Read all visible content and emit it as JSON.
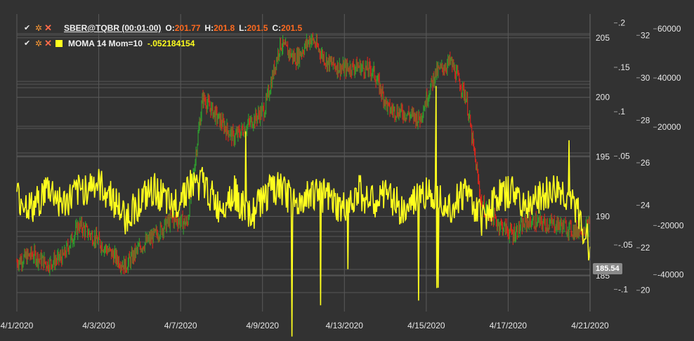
{
  "legend": {
    "candles": {
      "instrument": "SBER@TQBR (00:01:00)",
      "o_label": "O:",
      "o_value": "201.77",
      "h_label": "H:",
      "h_value": "201.8",
      "l_label": "L:",
      "l_value": "201.5",
      "c_label": "C:",
      "c_value": "201.5"
    },
    "indicator": {
      "name": "MOMA 14 Mom=10",
      "value": "-.052184154"
    }
  },
  "price_tag": "185.54",
  "colors": {
    "background": "#323232",
    "grid": "#5a5a5a",
    "candle_up": "#2e9a2e",
    "candle_down": "#d0271d",
    "indicator": "#ffff1e",
    "ohlc_value": "#ff6a1f",
    "indicator_value": "#ffff1e"
  },
  "chart_data": {
    "type": "line",
    "x_ticks": [
      "4/1/2020",
      "4/3/2020",
      "4/7/2020",
      "4/9/2020",
      "4/13/2020",
      "4/15/2020",
      "4/17/2020",
      "4/21/2020"
    ],
    "axes": [
      {
        "id": "price",
        "ticks": [
          "205",
          "200",
          "195",
          "190",
          "185"
        ],
        "range": [
          182,
          207
        ]
      },
      {
        "id": "indicator",
        "ticks": [
          ".2",
          ".15",
          ".1",
          ".05",
          "-.05",
          "-.1"
        ],
        "range": [
          -0.125,
          0.21
        ]
      },
      {
        "id": "axis3",
        "ticks": [
          "32",
          "30",
          "28",
          "26",
          "24",
          "22",
          "20"
        ],
        "range": [
          19,
          33
        ]
      },
      {
        "id": "axis4",
        "ticks": [
          "60000",
          "40000",
          "20000",
          "-20000",
          "-40000"
        ],
        "range": [
          -55000,
          66000
        ]
      }
    ],
    "series": [
      {
        "kind": "candles",
        "values": [
          186.2,
          186.8,
          186.0,
          186.6,
          189.3,
          188.2,
          187.0,
          185.8,
          187.5,
          188.5,
          189.8,
          189.4,
          200.0,
          198.2,
          196.6,
          197.8,
          199.0,
          204.5,
          203.2,
          205.0,
          203.0,
          202.4,
          202.6,
          202.2,
          199.0,
          198.7,
          198.2,
          202.0,
          203.0,
          200.0,
          191.0,
          189.5,
          188.5,
          189.6,
          189.4,
          189.3,
          188.8,
          189.2
        ]
      },
      {
        "kind": "indicator",
        "values": [
          0.005,
          -0.01,
          0.015,
          -0.005,
          0.01,
          0.02,
          0.008,
          -0.02,
          0.0,
          0.012,
          -0.01,
          0.016,
          0.02,
          -0.008,
          0.01,
          -0.02,
          0.006,
          0.014,
          -0.006,
          0.01,
          0.004,
          -0.012,
          0.012,
          -0.004,
          0.008,
          -0.014,
          0.006,
          0.01,
          -0.006,
          0.012,
          -0.02,
          0.004,
          0.01,
          -0.008,
          0.006,
          0.012,
          -0.006,
          -0.052
        ]
      }
    ]
  }
}
